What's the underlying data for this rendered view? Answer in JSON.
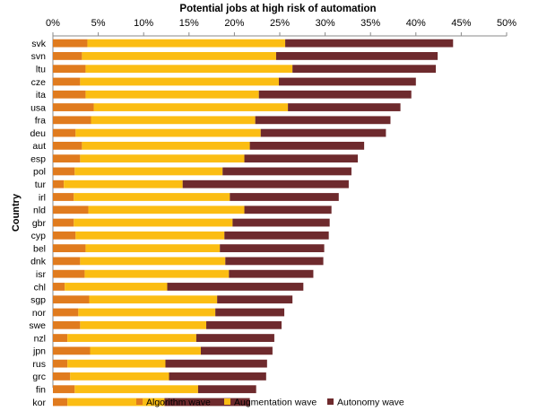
{
  "chart_data": {
    "type": "bar",
    "orientation": "horizontal",
    "stacked": true,
    "title": "Potential jobs at high risk of automation",
    "ylabel": "Country",
    "xlabel": "",
    "x_axis_position": "top",
    "xlim": [
      0,
      50
    ],
    "xticks": [
      0,
      5,
      10,
      15,
      20,
      25,
      30,
      35,
      40,
      45,
      50
    ],
    "xtick_labels": [
      "0%",
      "5%",
      "10%",
      "15%",
      "20%",
      "25%",
      "30%",
      "35%",
      "40%",
      "45%",
      "50%"
    ],
    "grid": false,
    "legend_position": "bottom",
    "categories": [
      "svk",
      "svn",
      "ltu",
      "cze",
      "ita",
      "usa",
      "fra",
      "deu",
      "aut",
      "esp",
      "pol",
      "tur",
      "irl",
      "nld",
      "gbr",
      "cyp",
      "bel",
      "dnk",
      "isr",
      "chl",
      "sgp",
      "nor",
      "swe",
      "nzl",
      "jpn",
      "rus",
      "grc",
      "fin",
      "kor"
    ],
    "series": [
      {
        "name": "Algorithm wave",
        "color": "#e07b1e",
        "values": [
          3.8,
          3.2,
          3.6,
          3.0,
          3.6,
          4.5,
          4.2,
          2.5,
          3.2,
          3.0,
          2.4,
          1.2,
          2.3,
          3.9,
          2.3,
          2.5,
          3.6,
          3.0,
          3.5,
          1.3,
          4.0,
          2.8,
          3.0,
          1.6,
          4.1,
          1.6,
          1.9,
          2.4,
          1.6
        ]
      },
      {
        "name": "Augmentation wave",
        "color": "#fbbd13",
        "values": [
          21.8,
          21.4,
          22.8,
          21.9,
          19.1,
          21.4,
          18.1,
          20.4,
          18.5,
          18.1,
          16.3,
          13.1,
          17.2,
          17.2,
          17.5,
          16.4,
          14.8,
          16.0,
          15.9,
          11.3,
          14.1,
          15.1,
          13.9,
          14.2,
          12.2,
          10.8,
          10.9,
          13.6,
          10.7
        ]
      },
      {
        "name": "Autonomy wave",
        "color": "#6e2a2d",
        "values": [
          18.5,
          17.8,
          15.8,
          15.1,
          16.8,
          12.4,
          14.9,
          13.8,
          12.6,
          12.5,
          14.2,
          18.3,
          12.0,
          9.6,
          10.7,
          11.5,
          11.5,
          10.8,
          9.3,
          15.0,
          8.3,
          7.6,
          8.3,
          8.6,
          7.9,
          11.2,
          10.7,
          6.4,
          9.4
        ]
      }
    ]
  }
}
